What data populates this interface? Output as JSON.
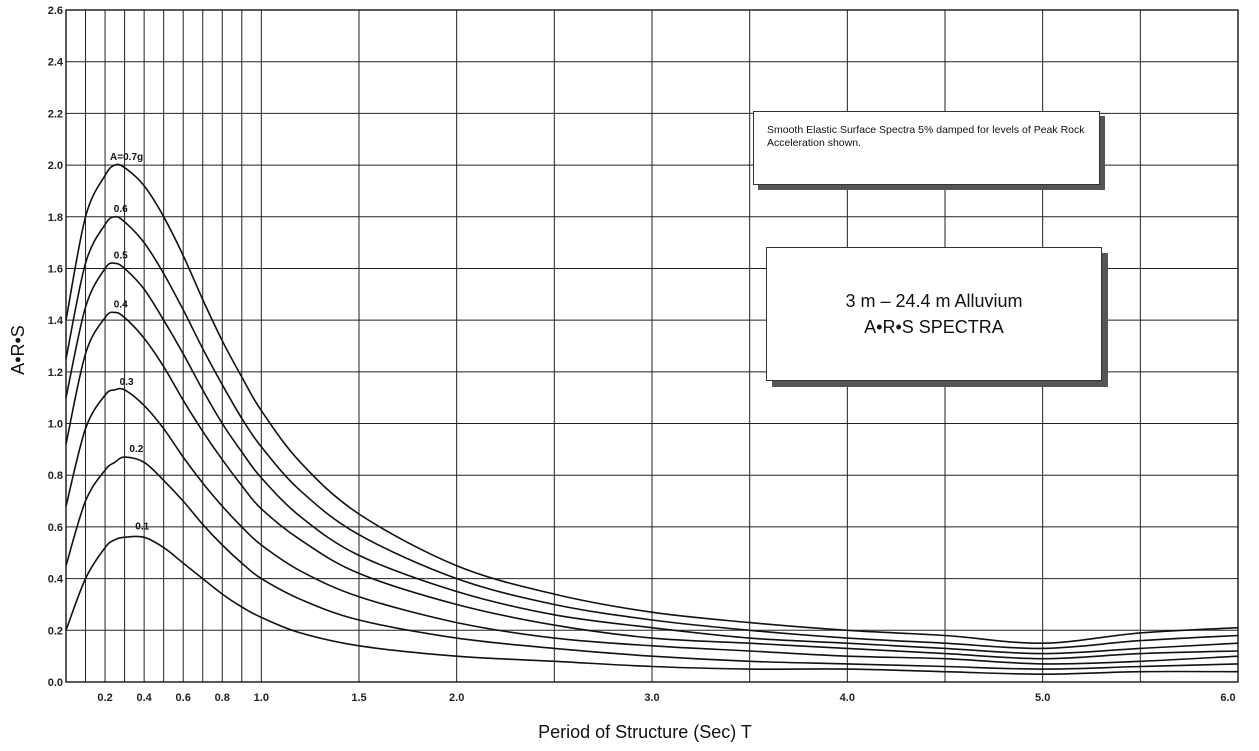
{
  "chart_data": {
    "type": "line",
    "title": "3 m – 24.4 m Alluvium",
    "subtitle": "A•R•S SPECTRA",
    "note": "Smooth Elastic Surface Spectra 5% damped for levels of Peak Rock Acceleration shown.",
    "xlabel": "Period of Structure (Sec) T",
    "ylabel": "A•R•S",
    "xlim": [
      0,
      6.0
    ],
    "ylim": [
      0,
      2.6
    ],
    "grid": true,
    "x_ticks": [
      {
        "v": 0.2,
        "t": "0.2"
      },
      {
        "v": 0.4,
        "t": "0.4"
      },
      {
        "v": 0.6,
        "t": "0.6"
      },
      {
        "v": 0.8,
        "t": "0.8"
      },
      {
        "v": 1.0,
        "t": "1.0"
      },
      {
        "v": 1.5,
        "t": "1.5"
      },
      {
        "v": 2.0,
        "t": "2.0"
      },
      {
        "v": 3.0,
        "t": "3.0"
      },
      {
        "v": 4.0,
        "t": "4.0"
      },
      {
        "v": 5.0,
        "t": "5.0"
      },
      {
        "v": 6.0,
        "t": "6.0"
      }
    ],
    "y_ticks": [
      "0.0",
      "0.2",
      "0.4",
      "0.6",
      "0.8",
      "1.0",
      "1.2",
      "1.4",
      "1.6",
      "1.8",
      "2.0",
      "2.2",
      "2.4",
      "2.6"
    ],
    "y_tick_values": [
      0,
      0.2,
      0.4,
      0.6,
      0.8,
      1.0,
      1.2,
      1.4,
      1.6,
      1.8,
      2.0,
      2.2,
      2.4,
      2.6
    ],
    "x": [
      0,
      0.1,
      0.2,
      0.25,
      0.3,
      0.4,
      0.5,
      0.6,
      0.7,
      0.8,
      0.9,
      1.0,
      1.2,
      1.5,
      2.0,
      2.5,
      3.0,
      3.5,
      4.0,
      4.5,
      5.0,
      5.5,
      6.0
    ],
    "series": [
      {
        "label": "A=0.7g",
        "peak": [
          0.3,
          2.0
        ],
        "values": [
          1.4,
          1.8,
          1.96,
          2.0,
          1.99,
          1.92,
          1.8,
          1.65,
          1.48,
          1.32,
          1.18,
          1.05,
          0.85,
          0.65,
          0.45,
          0.34,
          0.27,
          0.23,
          0.2,
          0.18,
          0.15,
          0.19,
          0.21
        ]
      },
      {
        "label": "0.6",
        "peak": [
          0.27,
          1.8
        ],
        "values": [
          1.25,
          1.62,
          1.77,
          1.8,
          1.78,
          1.7,
          1.58,
          1.44,
          1.29,
          1.15,
          1.02,
          0.91,
          0.74,
          0.57,
          0.4,
          0.3,
          0.24,
          0.2,
          0.17,
          0.15,
          0.13,
          0.16,
          0.18
        ]
      },
      {
        "label": "0.5",
        "peak": [
          0.27,
          1.62
        ],
        "values": [
          1.1,
          1.45,
          1.6,
          1.62,
          1.6,
          1.52,
          1.4,
          1.27,
          1.13,
          1.0,
          0.89,
          0.79,
          0.64,
          0.49,
          0.35,
          0.26,
          0.21,
          0.17,
          0.15,
          0.13,
          0.11,
          0.13,
          0.15
        ]
      },
      {
        "label": "0.4",
        "peak": [
          0.27,
          1.43
        ],
        "values": [
          0.92,
          1.27,
          1.41,
          1.43,
          1.41,
          1.33,
          1.22,
          1.09,
          0.97,
          0.86,
          0.76,
          0.67,
          0.55,
          0.42,
          0.3,
          0.22,
          0.17,
          0.15,
          0.13,
          0.11,
          0.09,
          0.11,
          0.12
        ]
      },
      {
        "label": "0.3",
        "peak": [
          0.3,
          1.13
        ],
        "values": [
          0.68,
          0.98,
          1.11,
          1.13,
          1.13,
          1.07,
          0.98,
          0.87,
          0.77,
          0.68,
          0.6,
          0.53,
          0.43,
          0.33,
          0.23,
          0.17,
          0.14,
          0.12,
          0.1,
          0.09,
          0.07,
          0.08,
          0.1
        ]
      },
      {
        "label": "0.2",
        "peak": [
          0.35,
          0.87
        ],
        "values": [
          0.45,
          0.7,
          0.82,
          0.85,
          0.87,
          0.85,
          0.78,
          0.7,
          0.61,
          0.53,
          0.46,
          0.4,
          0.32,
          0.24,
          0.17,
          0.13,
          0.1,
          0.08,
          0.07,
          0.06,
          0.05,
          0.06,
          0.07
        ]
      },
      {
        "label": "0.1",
        "peak": [
          0.38,
          0.57
        ],
        "values": [
          0.2,
          0.4,
          0.52,
          0.55,
          0.56,
          0.56,
          0.52,
          0.46,
          0.4,
          0.34,
          0.29,
          0.25,
          0.19,
          0.14,
          0.1,
          0.08,
          0.06,
          0.05,
          0.05,
          0.04,
          0.03,
          0.04,
          0.04
        ]
      }
    ]
  },
  "colors": {
    "line": "#111111",
    "grid": "#222222",
    "background": "#ffffff"
  }
}
